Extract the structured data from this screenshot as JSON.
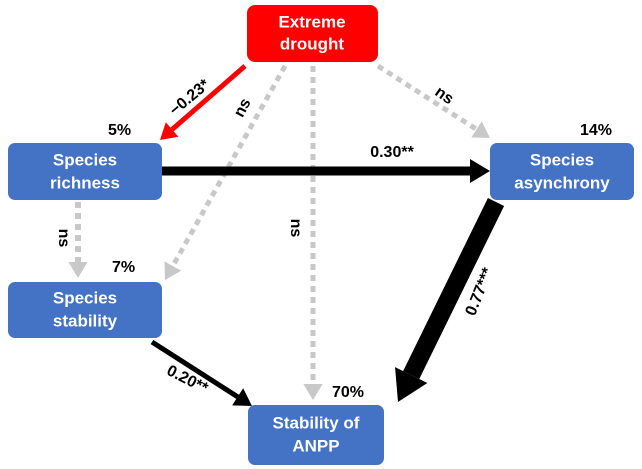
{
  "nodes": [
    {
      "lines": [
        "Extreme",
        "drought"
      ]
    },
    {
      "lines": [
        "Species",
        "richness"
      ],
      "explained": "5%"
    },
    {
      "lines": [
        "Species",
        "asynchrony"
      ],
      "explained": "14%"
    },
    {
      "lines": [
        "Species",
        "stability"
      ],
      "explained": "7%"
    },
    {
      "lines": [
        "Stability of",
        "ANPP"
      ],
      "explained": "70%"
    }
  ],
  "edges": [
    {
      "label": "−0.23*"
    },
    {
      "label": "ns"
    },
    {
      "label": "ns"
    },
    {
      "label": "ns"
    },
    {
      "label": "0.30**"
    },
    {
      "label": "ns"
    },
    {
      "label": "0.77***"
    },
    {
      "label": "0.20**"
    }
  ]
}
